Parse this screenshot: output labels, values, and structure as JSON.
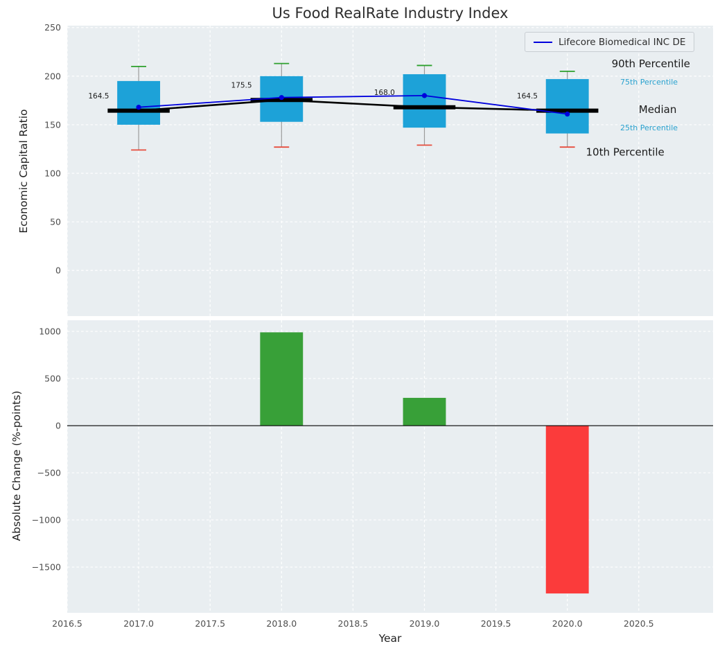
{
  "colors": {
    "figure_bg": "#ffffff",
    "axes_bg": "#e9eef1",
    "grid": "#ffffff",
    "box_fill": "#1da2d8",
    "median_line": "#000000",
    "company_line": "#0000dd",
    "whisker": "#9a9a9a",
    "cap_high": "#2ca02c",
    "cap_low": "#e74c3c",
    "bar_positive": "#38a038",
    "bar_negative": "#fb3b3b",
    "tick_label": "#4d4d4d",
    "axis_label": "#1f1f1f",
    "title_color": "#2d2d2d",
    "annotation_dark": "#1a1a1a",
    "annotation_accent": "#2aa2cf"
  },
  "chart_data": [
    {
      "type": "boxplot",
      "title": "Us Food RealRate Industry Index",
      "ylabel": "Economic Capital Ratio",
      "legend": {
        "label": "Lifecore Biomedical INC DE",
        "position": "upper right"
      },
      "xlim": [
        2016.5,
        2021.02
      ],
      "ylim": [
        -47,
        252
      ],
      "xticks": [
        2016.5,
        2017,
        2017.5,
        2018,
        2018.5,
        2019,
        2019.5,
        2020,
        2020.5
      ],
      "yticks": [
        0,
        50,
        100,
        150,
        200,
        250
      ],
      "ytick_labels": [
        "0",
        "50",
        "100",
        "150",
        "200",
        "250"
      ],
      "grid": true,
      "boxes": [
        {
          "year": 2017,
          "median": 164.5,
          "q1": 150,
          "q3": 195,
          "whisker_low": 124,
          "whisker_high": 210,
          "median_label": "164.5"
        },
        {
          "year": 2018,
          "median": 175.5,
          "q1": 153,
          "q3": 200,
          "whisker_low": 127,
          "whisker_high": 213,
          "median_label": "175.5"
        },
        {
          "year": 2019,
          "median": 168.0,
          "q1": 147,
          "q3": 202,
          "whisker_low": 129,
          "whisker_high": 211,
          "median_label": "168.0"
        },
        {
          "year": 2020,
          "median": 164.5,
          "q1": 141,
          "q3": 197,
          "whisker_low": 127,
          "whisker_high": 205,
          "median_label": "164.5"
        }
      ],
      "median_trend": {
        "x": [
          2017,
          2018,
          2019,
          2020
        ],
        "values": [
          164.5,
          175.5,
          168.0,
          164.5
        ]
      },
      "series": [
        {
          "name": "Lifecore Biomedical INC DE",
          "x": [
            2017,
            2018,
            2019,
            2020
          ],
          "values": [
            168,
            178,
            180,
            161
          ]
        }
      ],
      "annotations": [
        {
          "text": "90th Percentile",
          "x": 2020.31,
          "y": 213,
          "size": 15,
          "color": "#1a1a1a"
        },
        {
          "text": "75th Percentile",
          "x": 2020.37,
          "y": 194,
          "size": 11,
          "color": "#2aa2cf"
        },
        {
          "text": "Median",
          "x": 2020.5,
          "y": 166,
          "size": 15,
          "color": "#1a1a1a"
        },
        {
          "text": "25th Percentile",
          "x": 2020.37,
          "y": 147,
          "size": 11,
          "color": "#2aa2cf"
        },
        {
          "text": "10th Percentile",
          "x": 2020.13,
          "y": 122,
          "size": 15,
          "color": "#1a1a1a"
        }
      ]
    },
    {
      "type": "bar",
      "xlabel": "Year",
      "ylabel": "Absolute Change (%-points)",
      "xlim": [
        2016.5,
        2021.02
      ],
      "ylim": [
        -1985,
        1118
      ],
      "xticks": [
        2016.5,
        2017,
        2017.5,
        2018,
        2018.5,
        2019,
        2019.5,
        2020,
        2020.5
      ],
      "xtick_labels": [
        "2016.5",
        "2017.0",
        "2017.5",
        "2018.0",
        "2018.5",
        "2019.0",
        "2019.5",
        "2020.0",
        "2020.5"
      ],
      "yticks": [
        1000,
        500,
        0,
        -500,
        -1000,
        -1500
      ],
      "ytick_labels": [
        "1000",
        "500",
        "0",
        "−500",
        "−1000",
        "−1500"
      ],
      "grid": true,
      "categories": [
        2018,
        2019,
        2020
      ],
      "values": [
        990,
        295,
        -1780
      ],
      "zero_line": true
    }
  ]
}
